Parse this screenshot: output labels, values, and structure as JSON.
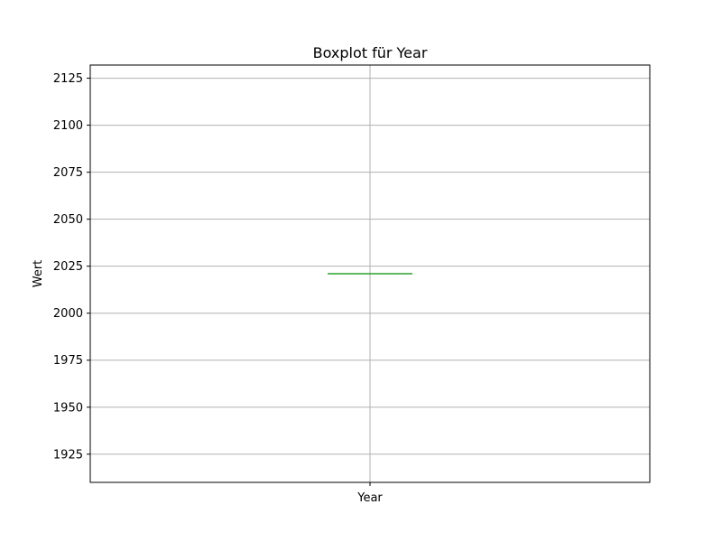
{
  "chart_data": {
    "type": "box",
    "title": "Boxplot für Year",
    "xlabel": "",
    "ylabel": "Wert",
    "categories": [
      "Year"
    ],
    "ylim": [
      1910,
      2132
    ],
    "yticks": [
      1925,
      1950,
      1975,
      2000,
      2025,
      2050,
      2075,
      2100,
      2125
    ],
    "grid": true,
    "series": [
      {
        "category": "Year",
        "min": 2021,
        "q1": 2021,
        "median": 2021,
        "q3": 2021,
        "max": 2021
      }
    ],
    "colors": {
      "median": "#2ca02c",
      "box": "#1f77b4",
      "grid": "#b0b0b0",
      "axes": "#000000"
    }
  }
}
